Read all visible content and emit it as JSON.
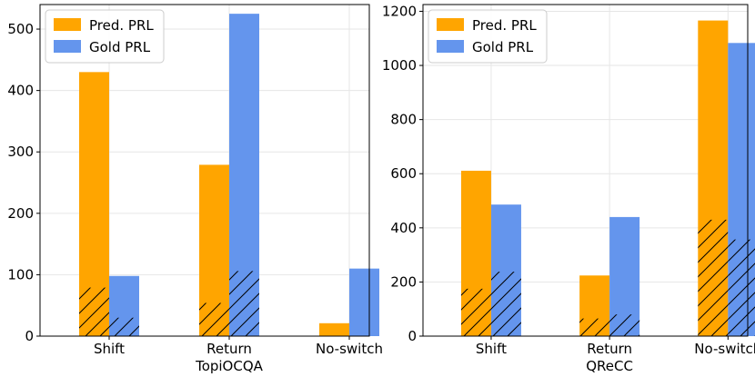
{
  "chart_data": [
    {
      "type": "bar",
      "xlabel": "TopiOCQA",
      "ylabel": "",
      "categories": [
        "Shift",
        "Return",
        "No-switch"
      ],
      "ylim": [
        0,
        540
      ],
      "yticks": [
        0,
        100,
        200,
        300,
        400,
        500
      ],
      "grid": true,
      "legend": "top-left",
      "series": [
        {
          "name": "Pred. PRL",
          "color": "#ffa500",
          "values": [
            430,
            279,
            21
          ],
          "hatched_values": [
            79,
            54,
            0
          ]
        },
        {
          "name": "Gold PRL",
          "color": "#6495ed",
          "values": [
            98,
            525,
            110
          ],
          "hatched_values": [
            30,
            106,
            0
          ]
        }
      ]
    },
    {
      "type": "bar",
      "xlabel": "QReCC",
      "ylabel": "",
      "categories": [
        "Shift",
        "Return",
        "No-switch"
      ],
      "ylim": [
        0,
        1225
      ],
      "yticks": [
        0,
        200,
        400,
        600,
        800,
        1000,
        1200
      ],
      "grid": true,
      "legend": "top-left",
      "series": [
        {
          "name": "Pred. PRL",
          "color": "#ffa500",
          "values": [
            611,
            224,
            1166
          ],
          "hatched_values": [
            175,
            65,
            430
          ]
        },
        {
          "name": "Gold PRL",
          "color": "#6495ed",
          "values": [
            486,
            440,
            1083
          ],
          "hatched_values": [
            238,
            80,
            357
          ]
        }
      ]
    }
  ]
}
